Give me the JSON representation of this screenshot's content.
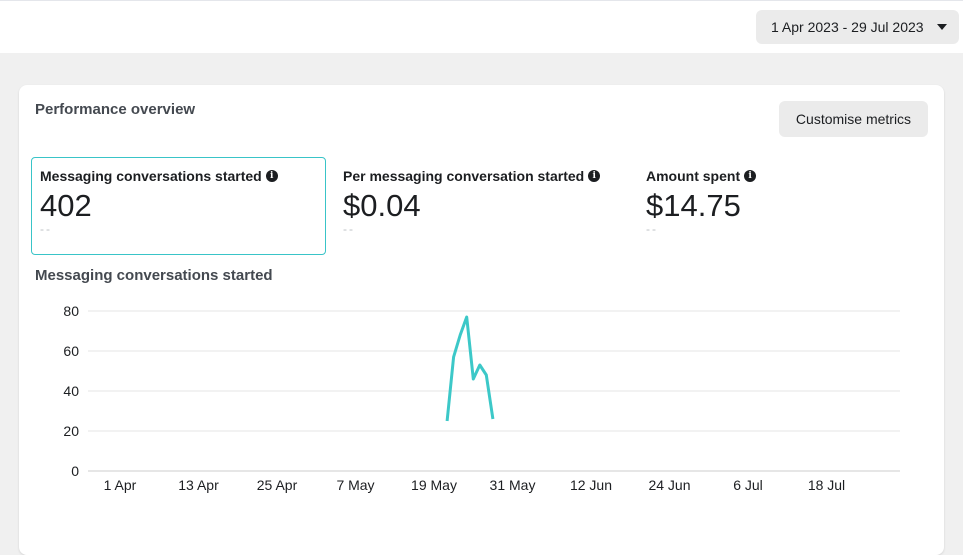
{
  "header": {
    "date_range": "1 Apr 2023 - 29 Jul 2023"
  },
  "card": {
    "title": "Performance overview",
    "customise_label": "Customise metrics"
  },
  "metrics": [
    {
      "label": "Messaging conversations started",
      "value": "402",
      "delta": "--"
    },
    {
      "label": "Per messaging conversation started",
      "value": "$0.04",
      "delta": "--"
    },
    {
      "label": "Amount spent",
      "value": "$14.75",
      "delta": "--"
    }
  ],
  "chart": {
    "title": "Messaging conversations started"
  },
  "chart_data": {
    "type": "line",
    "title": "Messaging conversations started",
    "xlabel": "",
    "ylabel": "",
    "ylim": [
      0,
      80
    ],
    "yticks": [
      0,
      20,
      40,
      60,
      80
    ],
    "x_ticks": [
      "1 Apr",
      "13 Apr",
      "25 Apr",
      "7 May",
      "19 May",
      "31 May",
      "12 Jun",
      "24 Jun",
      "6 Jul",
      "18 Jul"
    ],
    "grid": true,
    "series": [
      {
        "color": "#3cc8c8",
        "x": [
          "2023-05-21",
          "2023-05-22",
          "2023-05-23",
          "2023-05-24",
          "2023-05-25",
          "2023-05-26",
          "2023-05-27",
          "2023-05-28"
        ],
        "y": [
          25,
          57,
          68,
          77,
          46,
          53,
          48,
          26
        ]
      }
    ]
  }
}
